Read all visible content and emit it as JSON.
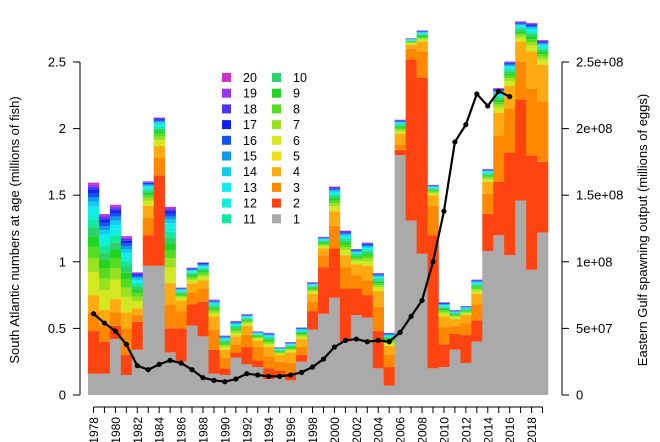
{
  "chart_data": {
    "type": "bar",
    "subtype": "stacked bar with secondary-axis line",
    "ylabel": "South Atlantic numbers at age (millions of fish)",
    "y2label": "Eastern Gulf spawning output (millions of eggs)",
    "ylim": [
      0,
      2.5
    ],
    "yticks": [
      "0",
      "0.5",
      "1",
      "1.5",
      "2",
      "2.5"
    ],
    "y2lim": [
      0,
      250000000
    ],
    "y2ticks": [
      "0",
      "5e+07",
      "1e+08",
      "1.5e+08",
      "2e+08",
      "2.5e+08"
    ],
    "xtick_labels": [
      "1978",
      "1980",
      "1982",
      "1984",
      "1986",
      "1988",
      "1990",
      "1992",
      "1994",
      "1996",
      "1998",
      "2000",
      "2002",
      "2004",
      "2006",
      "2008",
      "2010",
      "2012",
      "2014",
      "2016",
      "2018"
    ],
    "years": [
      1978,
      1979,
      1980,
      1981,
      1982,
      1983,
      1984,
      1985,
      1986,
      1987,
      1988,
      1989,
      1990,
      1991,
      1992,
      1993,
      1994,
      1995,
      1996,
      1997,
      1998,
      1999,
      2000,
      2001,
      2002,
      2003,
      2004,
      2005,
      2006,
      2007,
      2008,
      2009,
      2010,
      2011,
      2012,
      2013,
      2014,
      2015,
      2016,
      2017,
      2018,
      2019
    ],
    "totals": [
      1.62,
      1.38,
      1.45,
      1.21,
      0.93,
      1.61,
      2.09,
      1.43,
      0.81,
      0.96,
      1.0,
      0.72,
      0.45,
      0.56,
      0.61,
      0.48,
      0.47,
      0.36,
      0.4,
      0.51,
      0.85,
      1.19,
      1.57,
      1.24,
      1.1,
      1.15,
      0.92,
      0.47,
      2.07,
      2.68,
      2.74,
      1.58,
      0.7,
      0.64,
      0.67,
      0.87,
      1.7,
      2.31,
      2.51,
      2.81,
      2.8,
      2.67
    ],
    "age1": [
      0.16,
      0.16,
      0.42,
      0.15,
      0.34,
      0.97,
      0.97,
      0.32,
      0.25,
      0.52,
      0.44,
      0.16,
      0.15,
      0.28,
      0.23,
      0.21,
      0.12,
      0.14,
      0.11,
      0.25,
      0.49,
      0.61,
      0.73,
      0.4,
      0.6,
      0.58,
      0.2,
      0.07,
      1.8,
      1.31,
      1.06,
      0.2,
      0.21,
      0.34,
      0.24,
      0.4,
      1.08,
      1.2,
      1.05,
      1.46,
      0.94,
      1.22
    ],
    "age2": [
      0.48,
      0.4,
      0.52,
      0.3,
      0.55,
      1.2,
      1.65,
      0.5,
      0.5,
      0.68,
      0.7,
      0.34,
      0.2,
      0.32,
      0.36,
      0.26,
      0.2,
      0.18,
      0.16,
      0.3,
      0.63,
      0.96,
      1.1,
      0.8,
      0.8,
      0.75,
      0.48,
      0.21,
      1.84,
      2.52,
      2.38,
      1.2,
      0.38,
      0.46,
      0.45,
      0.56,
      1.36,
      1.6,
      1.82,
      2.22,
      1.8,
      1.75
    ],
    "age3": [
      0.62,
      0.52,
      0.62,
      0.5,
      0.6,
      1.33,
      1.78,
      0.68,
      0.63,
      0.77,
      0.8,
      0.49,
      0.28,
      0.38,
      0.45,
      0.36,
      0.29,
      0.25,
      0.24,
      0.36,
      0.7,
      1.05,
      1.27,
      0.96,
      0.9,
      0.86,
      0.66,
      0.3,
      1.88,
      2.6,
      2.58,
      1.42,
      0.51,
      0.52,
      0.54,
      0.68,
      1.51,
      1.95,
      2.15,
      2.5,
      2.3,
      2.2
    ],
    "age4": [
      0.75,
      0.64,
      0.72,
      0.62,
      0.65,
      1.42,
      1.87,
      0.84,
      0.71,
      0.84,
      0.86,
      0.59,
      0.34,
      0.44,
      0.52,
      0.41,
      0.36,
      0.3,
      0.32,
      0.42,
      0.76,
      1.1,
      1.38,
      1.05,
      0.98,
      0.97,
      0.78,
      0.37,
      1.96,
      2.63,
      2.65,
      1.5,
      0.59,
      0.57,
      0.6,
      0.76,
      1.6,
      2.12,
      2.32,
      2.65,
      2.58,
      2.48
    ],
    "line": {
      "name": "Eastern Gulf spawning output",
      "color": "#000000",
      "values": [
        61000000,
        54000000,
        48000000,
        38000000,
        22000000,
        19000000,
        23000000,
        26000000,
        24000000,
        19000000,
        13000000,
        11000000,
        10000000,
        12000000,
        16000000,
        15000000,
        14000000,
        14000000,
        15000000,
        17000000,
        21000000,
        27000000,
        36000000,
        41000000,
        42000000,
        40000000,
        41000000,
        40000000,
        47000000,
        59000000,
        71000000,
        100000000,
        138000000,
        190000000,
        203000000,
        226000000,
        217000000,
        228000000,
        224000000
      ]
    },
    "legend": [
      {
        "label": "20",
        "color": "#cc33cc"
      },
      {
        "label": "10",
        "color": "#2bd46b"
      },
      {
        "label": "19",
        "color": "#9933ee"
      },
      {
        "label": "9",
        "color": "#22d422"
      },
      {
        "label": "18",
        "color": "#4d33ee"
      },
      {
        "label": "8",
        "color": "#55dd22"
      },
      {
        "label": "17",
        "color": "#1122ee"
      },
      {
        "label": "7",
        "color": "#99e222"
      },
      {
        "label": "16",
        "color": "#1155ee"
      },
      {
        "label": "6",
        "color": "#d4e822"
      },
      {
        "label": "15",
        "color": "#1199ee"
      },
      {
        "label": "5",
        "color": "#eedd11"
      },
      {
        "label": "14",
        "color": "#11ccee"
      },
      {
        "label": "4",
        "color": "#ffaa11"
      },
      {
        "label": "13",
        "color": "#11eeee"
      },
      {
        "label": "3",
        "color": "#ff8800"
      },
      {
        "label": "12",
        "color": "#11eedd"
      },
      {
        "label": "2",
        "color": "#ff4411"
      },
      {
        "label": "11",
        "color": "#11e8a0"
      },
      {
        "label": "1",
        "color": "#aaaaaa"
      }
    ],
    "age_colors": [
      "#aaaaaa",
      "#ff4411",
      "#ff8800",
      "#ffaa11",
      "#eedd11",
      "#d4e822",
      "#99e222",
      "#55dd22",
      "#22d422",
      "#2bd46b",
      "#11e8a0",
      "#11eedd",
      "#11eeee",
      "#11ccee",
      "#1199ee",
      "#1155ee",
      "#1122ee",
      "#4d33ee",
      "#9933ee",
      "#cc33cc"
    ],
    "grid": false,
    "legend_position": "upper-left"
  }
}
